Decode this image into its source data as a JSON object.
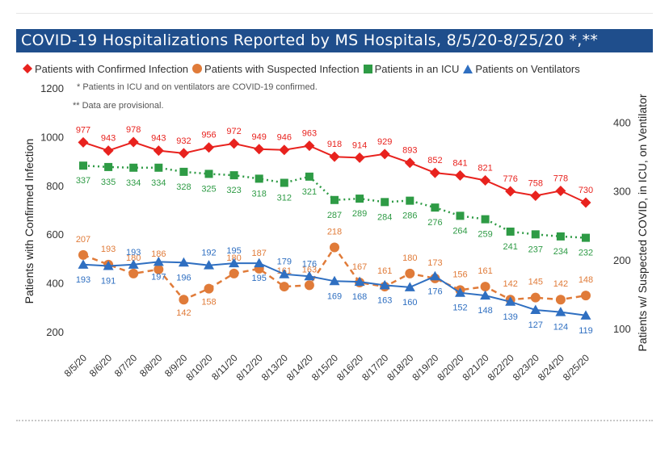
{
  "title": "COVID-19 Hospitalizations Reported by MS Hospitals, 8/5/20-8/25/20 *,**",
  "notes": [
    "* Patients in ICU and on ventilators are COVID-19 confirmed.",
    "** Data are provisional."
  ],
  "chart_data": {
    "type": "line",
    "x": [
      "8/5/20",
      "8/6/20",
      "8/7/20",
      "8/8/20",
      "8/9/20",
      "8/10/20",
      "8/11/20",
      "8/12/20",
      "8/13/20",
      "8/14/20",
      "8/15/20",
      "8/16/20",
      "8/17/20",
      "8/18/20",
      "8/19/20",
      "8/20/20",
      "8/21/20",
      "8/22/20",
      "8/23/20",
      "8/24/20",
      "8/25/20"
    ],
    "y_left": {
      "label": "Patients with Confirmed Infection",
      "range": [
        200,
        1200
      ],
      "ticks": [
        200,
        400,
        600,
        800,
        1000,
        1200
      ]
    },
    "y_right": {
      "label": "Patients w/ Suspected COVID, in ICU, on Ventilator",
      "range": [
        100,
        450
      ],
      "ticks": [
        100,
        200,
        300,
        400
      ]
    },
    "series": [
      {
        "name": "Patients with Confirmed Infection",
        "axis": "left",
        "marker": "diamond",
        "line": "solid",
        "color": "#e8221e",
        "values": [
          977,
          943,
          978,
          943,
          932,
          956,
          972,
          949,
          946,
          963,
          918,
          914,
          929,
          893,
          852,
          841,
          821,
          776,
          758,
          778,
          730
        ]
      },
      {
        "name": "Patients with Suspected Infection",
        "axis": "right",
        "marker": "circle",
        "line": "dashed",
        "color": "#e07b39",
        "values": [
          207,
          193,
          180,
          186,
          142,
          158,
          180,
          187,
          161,
          163,
          218,
          167,
          161,
          180,
          173,
          156,
          161,
          142,
          145,
          142,
          148
        ]
      },
      {
        "name": "Patients in an ICU",
        "axis": "right",
        "marker": "square",
        "line": "dotted",
        "color": "#2e9b45",
        "values": [
          337,
          335,
          334,
          334,
          328,
          325,
          323,
          318,
          312,
          321,
          287,
          289,
          284,
          286,
          276,
          264,
          259,
          241,
          237,
          234,
          232
        ]
      },
      {
        "name": "Patients on Ventilators",
        "axis": "right",
        "marker": "triangle",
        "line": "solid",
        "color": "#2f6fc1",
        "values": [
          193,
          191,
          193,
          197,
          196,
          192,
          195,
          195,
          179,
          176,
          169,
          168,
          163,
          160,
          176,
          152,
          148,
          139,
          127,
          124,
          119
        ]
      }
    ],
    "grid": false,
    "legend_position": "top-left"
  }
}
